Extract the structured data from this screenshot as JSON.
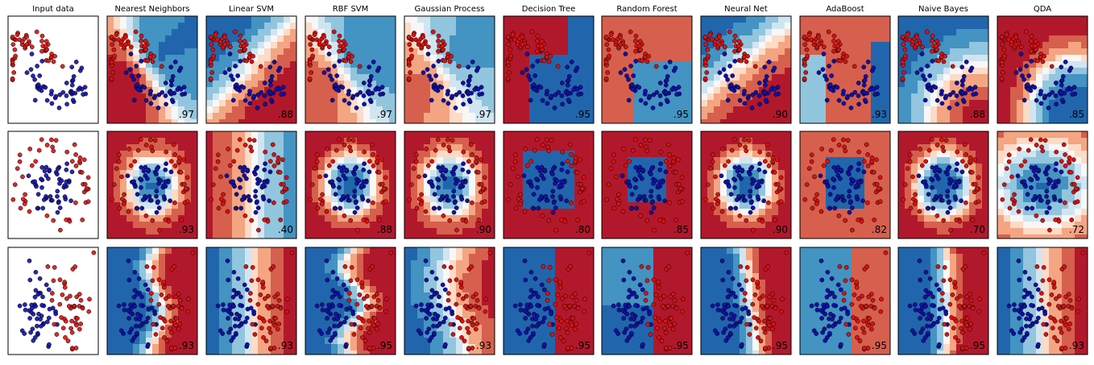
{
  "chart_data": {
    "type": "scatter",
    "titles": [
      "Input data",
      "Nearest Neighbors",
      "Linear SVM",
      "RBF SVM",
      "Gaussian Process",
      "Decision Tree",
      "Random Forest",
      "Neural Net",
      "AdaBoost",
      "Naive Bayes",
      "QDA"
    ],
    "rows": [
      {
        "scores": [
          ".97",
          ".88",
          ".97",
          ".97",
          ".95",
          ".95",
          ".90",
          ".93",
          ".88",
          ".85"
        ]
      },
      {
        "scores": [
          ".93",
          ".40",
          ".88",
          ".90",
          ".80",
          ".85",
          ".90",
          ".82",
          ".70",
          ".72"
        ]
      },
      {
        "scores": [
          ".93",
          ".93",
          ".95",
          ".93",
          ".95",
          ".95",
          ".95",
          ".95",
          ".95",
          ".93"
        ]
      }
    ],
    "grid": false,
    "legend": "none"
  },
  "colors": {
    "red_point": "#dd1111",
    "blue_point": "#1111aa",
    "red_region": "#b2182b",
    "blue_region": "#2166ac",
    "neutral": "#f7f7f7"
  }
}
